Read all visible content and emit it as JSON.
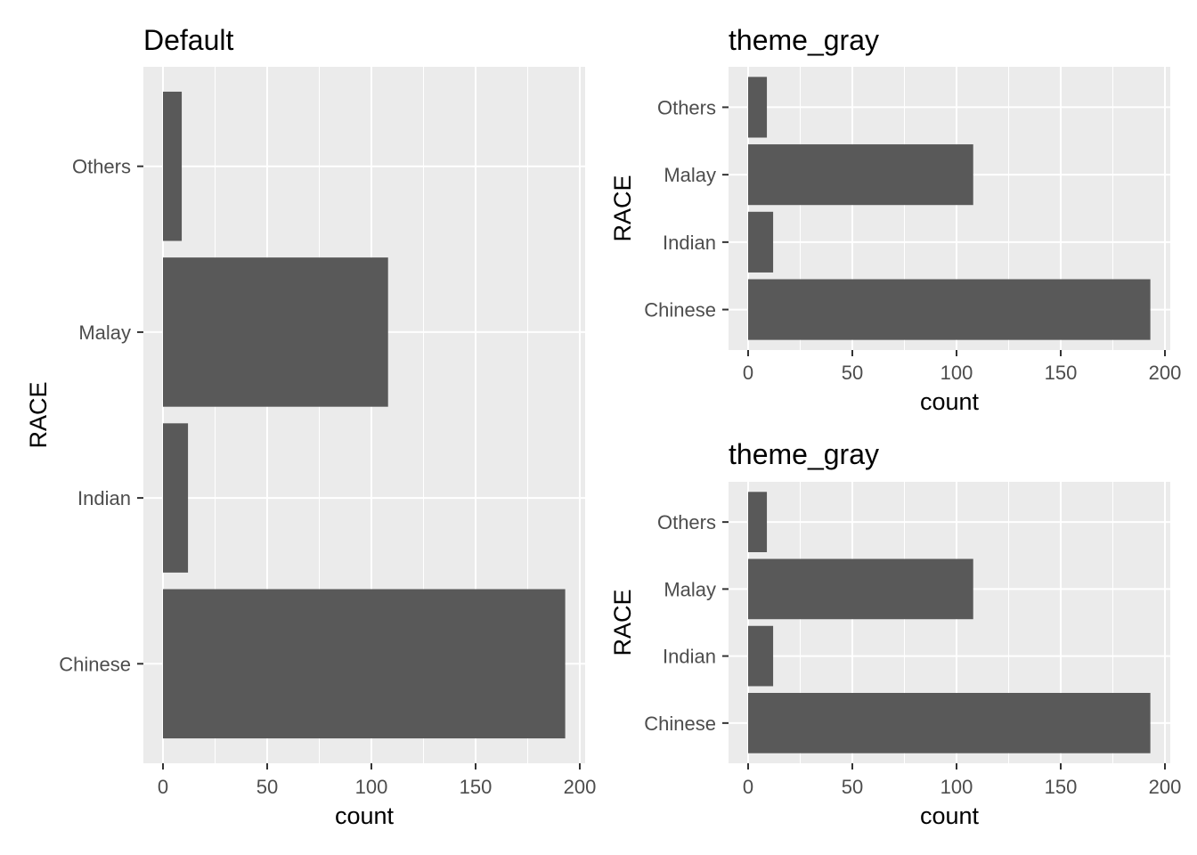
{
  "chart_data": [
    {
      "type": "bar",
      "orientation": "horizontal",
      "title": "Default",
      "xlabel": "count",
      "ylabel": "RACE",
      "categories": [
        "Chinese",
        "Indian",
        "Malay",
        "Others"
      ],
      "values": [
        193,
        12,
        108,
        9
      ],
      "xlim": [
        0,
        200
      ],
      "xticks": [
        0,
        50,
        100,
        150,
        200
      ],
      "grid": true,
      "colors": {
        "bar": "#595959",
        "panel": "#ebebeb",
        "grid": "#ffffff"
      }
    },
    {
      "type": "bar",
      "orientation": "horizontal",
      "title": "theme_gray",
      "xlabel": "count",
      "ylabel": "RACE",
      "categories": [
        "Chinese",
        "Indian",
        "Malay",
        "Others"
      ],
      "values": [
        193,
        12,
        108,
        9
      ],
      "xlim": [
        0,
        200
      ],
      "xticks": [
        0,
        50,
        100,
        150,
        200
      ],
      "grid": true,
      "colors": {
        "bar": "#595959",
        "panel": "#ebebeb",
        "grid": "#ffffff"
      }
    },
    {
      "type": "bar",
      "orientation": "horizontal",
      "title": "theme_gray",
      "xlabel": "count",
      "ylabel": "RACE",
      "categories": [
        "Chinese",
        "Indian",
        "Malay",
        "Others"
      ],
      "values": [
        193,
        12,
        108,
        9
      ],
      "xlim": [
        0,
        200
      ],
      "xticks": [
        0,
        50,
        100,
        150,
        200
      ],
      "grid": true,
      "colors": {
        "bar": "#595959",
        "panel": "#ebebeb",
        "grid": "#ffffff"
      }
    }
  ]
}
